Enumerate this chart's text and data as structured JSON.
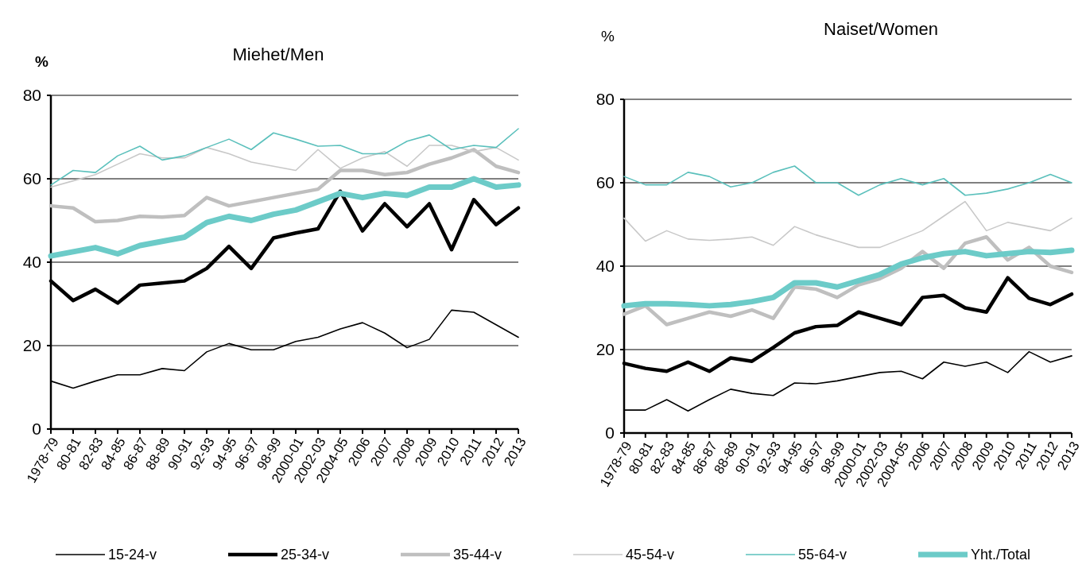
{
  "chart_data": [
    {
      "type": "line",
      "title": "Miehet/Men",
      "ylabel": "%",
      "categories": [
        "1978-79",
        "80-81",
        "82-83",
        "84-85",
        "86-87",
        "88-89",
        "90-91",
        "92-93",
        "94-95",
        "96-97",
        "98-99",
        "2000-01",
        "2002-03",
        "2004-05",
        "2006",
        "2007",
        "2008",
        "2009",
        "2010",
        "2011",
        "2012",
        "2013"
      ],
      "ylim": [
        0,
        80
      ],
      "yticks": [
        0,
        20,
        40,
        60,
        80
      ],
      "grid": "y",
      "legend": "bottom",
      "series": [
        {
          "name": "15-24-v",
          "color": "#000000",
          "values": [
            11.5,
            9.8,
            11.5,
            13,
            13,
            14.5,
            14,
            18.5,
            20.5,
            19,
            19,
            21,
            22,
            24,
            25.5,
            23,
            19.5,
            21.5,
            28.5,
            28,
            25,
            22
          ]
        },
        {
          "name": "25-34-v",
          "color": "#000000",
          "values": [
            35.5,
            30.8,
            33.5,
            30.2,
            34.5,
            35,
            35.5,
            38.5,
            43.8,
            38.5,
            45.8,
            47,
            48,
            57,
            47.5,
            54,
            48.5,
            54,
            43,
            55,
            49,
            53
          ]
        },
        {
          "name": "35-44-v",
          "color": "#bfbfbf",
          "values": [
            53.5,
            53,
            49.7,
            50,
            51,
            50.8,
            51.2,
            55.5,
            53.5,
            54.5,
            55.5,
            56.5,
            57.5,
            62,
            62,
            61,
            61.5,
            63.5,
            65,
            67,
            63,
            61.5
          ]
        },
        {
          "name": "45-54-v",
          "color": "#c8c8c8",
          "values": [
            58,
            59.5,
            61,
            63.5,
            66,
            65,
            65,
            67.5,
            66,
            64,
            63,
            62,
            67,
            62.5,
            65,
            66.5,
            63,
            68,
            68,
            66.5,
            67.5,
            64.5
          ]
        },
        {
          "name": "55-64-v",
          "color": "#5bc0bc",
          "values": [
            58.5,
            62,
            61.5,
            65.5,
            67.8,
            64.5,
            65.5,
            67.5,
            69.5,
            67,
            71,
            69.5,
            67.8,
            68,
            66,
            66,
            69,
            70.5,
            67,
            68,
            67.5,
            72
          ]
        },
        {
          "name": "Yht./Total",
          "color": "#6ccbc8",
          "values": [
            41.5,
            42.5,
            43.5,
            42,
            44,
            45,
            46,
            49.5,
            51,
            50,
            51.5,
            52.5,
            54.5,
            56.5,
            55.5,
            56.5,
            56,
            58,
            58,
            60,
            58,
            58.5
          ]
        }
      ]
    },
    {
      "type": "line",
      "title": "Naiset/Women",
      "ylabel": "%",
      "categories": [
        "1978-79",
        "80-81",
        "82-83",
        "84-85",
        "86-87",
        "88-89",
        "90-91",
        "92-93",
        "94-95",
        "96-97",
        "98-99",
        "2000-01",
        "2002-03",
        "2004-05",
        "2006",
        "2007",
        "2008",
        "2009",
        "2010",
        "2011",
        "2012",
        "2013"
      ],
      "ylim": [
        0,
        80
      ],
      "yticks": [
        0,
        20,
        40,
        60,
        80
      ],
      "grid": "y",
      "series": [
        {
          "color": "#000000",
          "values": [
            5.5,
            5.5,
            8,
            5.3,
            8,
            10.5,
            9.5,
            9,
            12,
            11.8,
            12.5,
            13.5,
            14.5,
            14.8,
            13,
            17,
            16,
            17,
            14.5,
            19.5,
            17,
            18.5
          ]
        },
        {
          "color": "#000000",
          "values": [
            16.7,
            15.5,
            14.8,
            17,
            14.8,
            18,
            17.2,
            20.5,
            24,
            25.5,
            25.8,
            29,
            27.5,
            26,
            32.5,
            33,
            30,
            29,
            37.2,
            32.3,
            30.8,
            33.3
          ]
        },
        {
          "color": "#bfbfbf",
          "values": [
            28.5,
            30.5,
            26,
            27.5,
            29,
            28,
            29.5,
            27.5,
            35,
            34.5,
            32.5,
            35.5,
            37,
            39.5,
            43.5,
            39.5,
            45.5,
            47,
            41.5,
            44.5,
            40,
            38.5
          ]
        },
        {
          "color": "#c8c8c8",
          "values": [
            51.5,
            46,
            48.5,
            46.5,
            46.2,
            46.5,
            47,
            45,
            49.5,
            47.5,
            46,
            44.5,
            44.5,
            46.5,
            48.5,
            52,
            55.5,
            48.5,
            50.5,
            49.5,
            48.5,
            51.5
          ]
        },
        {
          "color": "#5bc0bc",
          "values": [
            61.5,
            59.5,
            59.5,
            62.5,
            61.5,
            59,
            60,
            62.5,
            64,
            60,
            60,
            57,
            59.5,
            61,
            59.5,
            61,
            57,
            57.5,
            58.5,
            60,
            62,
            60
          ]
        },
        {
          "color": "#6ccbc8",
          "values": [
            30.5,
            31,
            31,
            30.8,
            30.5,
            30.8,
            31.5,
            32.5,
            36,
            36,
            35,
            36.5,
            38,
            40.5,
            42,
            43,
            43.5,
            42.5,
            43,
            43.5,
            43.3,
            43.8
          ]
        }
      ]
    }
  ]
}
